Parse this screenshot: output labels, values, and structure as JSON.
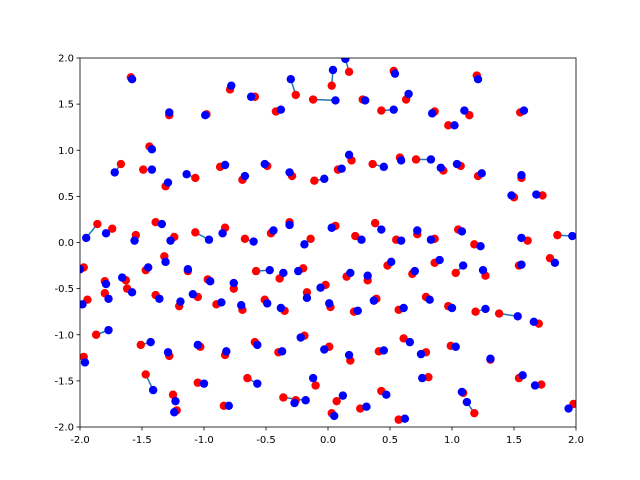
{
  "chart_data": {
    "type": "scatter",
    "title": "",
    "xlabel": "",
    "ylabel": "",
    "xlim": [
      -2.0,
      2.0
    ],
    "ylim": [
      -2.0,
      2.0
    ],
    "xticks": [
      "-2.0",
      "-1.5",
      "-1.0",
      "-0.5",
      "0.0",
      "0.5",
      "1.0",
      "1.5",
      "2.0"
    ],
    "yticks": [
      "-2.0",
      "-1.5",
      "-1.0",
      "-0.5",
      "0.0",
      "0.5",
      "1.0",
      "1.5",
      "2.0"
    ],
    "grid": false,
    "legend": "none",
    "colors": {
      "start": "#ff0000",
      "end": "#0000ff",
      "segment": "#1f77b4"
    },
    "series": [
      {
        "values": [
          [
            -1.59,
            1.79,
            -1.58,
            1.77
          ],
          [
            -1.44,
            1.04,
            -1.42,
            1.01
          ],
          [
            -1.28,
            1.38,
            -1.28,
            1.41
          ],
          [
            -0.98,
            1.39,
            -0.99,
            1.38
          ],
          [
            -0.79,
            1.66,
            -0.78,
            1.7
          ],
          [
            -0.59,
            1.58,
            -0.62,
            1.58
          ],
          [
            -0.42,
            1.42,
            -0.38,
            1.44
          ],
          [
            -0.26,
            1.6,
            -0.3,
            1.77
          ],
          [
            -0.12,
            1.55,
            0.06,
            1.54
          ],
          [
            0.03,
            1.7,
            0.04,
            1.87
          ],
          [
            0.17,
            1.85,
            0.14,
            1.99
          ],
          [
            0.28,
            1.55,
            0.3,
            1.54
          ],
          [
            0.43,
            1.43,
            0.53,
            1.44
          ],
          [
            0.53,
            1.86,
            0.54,
            1.83
          ],
          [
            0.63,
            1.55,
            0.65,
            1.61
          ],
          [
            0.86,
            1.42,
            0.84,
            1.4
          ],
          [
            0.97,
            1.27,
            1.02,
            1.27
          ],
          [
            1.14,
            1.38,
            1.1,
            1.43
          ],
          [
            1.2,
            1.81,
            1.21,
            1.77
          ],
          [
            1.55,
            1.41,
            1.58,
            1.43
          ],
          [
            -1.67,
            0.85,
            -1.72,
            0.76
          ],
          [
            -1.49,
            0.79,
            -1.42,
            0.79
          ],
          [
            -1.31,
            0.61,
            -1.29,
            0.65
          ],
          [
            -1.07,
            0.7,
            -1.14,
            0.74
          ],
          [
            -0.87,
            0.82,
            -0.83,
            0.84
          ],
          [
            -0.69,
            0.68,
            -0.67,
            0.72
          ],
          [
            -0.49,
            0.83,
            -0.51,
            0.85
          ],
          [
            -0.29,
            0.72,
            -0.31,
            0.76
          ],
          [
            -0.11,
            0.67,
            -0.03,
            0.69
          ],
          [
            0.08,
            0.79,
            0.11,
            0.8
          ],
          [
            0.19,
            0.89,
            0.17,
            0.95
          ],
          [
            0.36,
            0.85,
            0.45,
            0.82
          ],
          [
            0.58,
            0.92,
            0.59,
            0.89
          ],
          [
            0.71,
            0.9,
            0.83,
            0.9
          ],
          [
            0.93,
            0.78,
            0.91,
            0.81
          ],
          [
            1.07,
            0.83,
            1.04,
            0.85
          ],
          [
            1.21,
            0.72,
            1.24,
            0.75
          ],
          [
            1.5,
            0.49,
            1.48,
            0.51
          ],
          [
            1.56,
            0.7,
            1.56,
            0.73
          ],
          [
            1.73,
            0.51,
            1.68,
            0.52
          ],
          [
            -1.86,
            0.2,
            -1.95,
            0.05
          ],
          [
            -1.74,
            0.15,
            -1.79,
            0.1
          ],
          [
            -1.55,
            0.08,
            -1.56,
            0.02
          ],
          [
            -1.39,
            0.22,
            -1.34,
            0.2
          ],
          [
            -1.24,
            0.06,
            -1.27,
            0.02
          ],
          [
            -1.07,
            0.11,
            -0.96,
            0.03
          ],
          [
            -0.83,
            0.16,
            -0.85,
            0.1
          ],
          [
            -0.67,
            0.04,
            -0.6,
            0.01
          ],
          [
            -0.46,
            0.1,
            -0.44,
            0.13
          ],
          [
            -0.31,
            0.22,
            -0.31,
            0.19
          ],
          [
            -0.14,
            0.04,
            -0.19,
            -0.02
          ],
          [
            0.06,
            0.18,
            0.03,
            0.16
          ],
          [
            0.22,
            0.07,
            0.27,
            0.03
          ],
          [
            0.38,
            0.21,
            0.43,
            0.14
          ],
          [
            0.55,
            0.03,
            0.59,
            0.02
          ],
          [
            0.72,
            0.09,
            0.72,
            0.13
          ],
          [
            0.86,
            0.04,
            0.83,
            0.03
          ],
          [
            1.05,
            0.14,
            1.08,
            0.12
          ],
          [
            1.18,
            -0.02,
            1.23,
            -0.04
          ],
          [
            1.61,
            0.02,
            1.56,
            0.05
          ],
          [
            1.85,
            0.08,
            1.97,
            0.07
          ],
          [
            -1.97,
            -0.27,
            -2.0,
            -0.29
          ],
          [
            -1.8,
            -0.42,
            -1.79,
            -0.45
          ],
          [
            -1.63,
            -0.41,
            -1.66,
            -0.38
          ],
          [
            -1.47,
            -0.3,
            -1.45,
            -0.27
          ],
          [
            -1.32,
            -0.15,
            -1.31,
            -0.21
          ],
          [
            -1.13,
            -0.31,
            -1.13,
            -0.29
          ],
          [
            -0.97,
            -0.4,
            -0.95,
            -0.42
          ],
          [
            -0.76,
            -0.5,
            -0.76,
            -0.44
          ],
          [
            -0.58,
            -0.31,
            -0.47,
            -0.3
          ],
          [
            -0.39,
            -0.39,
            -0.36,
            -0.33
          ],
          [
            -0.2,
            -0.28,
            -0.24,
            -0.31
          ],
          [
            -0.02,
            -0.46,
            -0.06,
            -0.49
          ],
          [
            0.15,
            -0.37,
            0.18,
            -0.33
          ],
          [
            0.32,
            -0.41,
            0.32,
            -0.36
          ],
          [
            0.48,
            -0.25,
            0.51,
            -0.21
          ],
          [
            0.68,
            -0.34,
            0.7,
            -0.31
          ],
          [
            0.86,
            -0.22,
            0.9,
            -0.19
          ],
          [
            1.03,
            -0.33,
            1.09,
            -0.25
          ],
          [
            1.27,
            -0.36,
            1.25,
            -0.3
          ],
          [
            1.54,
            -0.25,
            1.56,
            -0.24
          ],
          [
            1.79,
            -0.17,
            1.83,
            -0.22
          ],
          [
            -1.94,
            -0.62,
            -1.98,
            -0.67
          ],
          [
            -1.8,
            -0.55,
            -1.77,
            -0.61
          ],
          [
            -1.62,
            -0.5,
            -1.58,
            -0.54
          ],
          [
            -1.39,
            -0.57,
            -1.36,
            -0.61
          ],
          [
            -1.2,
            -0.69,
            -1.19,
            -0.64
          ],
          [
            -1.05,
            -0.59,
            -1.09,
            -0.56
          ],
          [
            -0.9,
            -0.67,
            -0.86,
            -0.65
          ],
          [
            -0.69,
            -0.73,
            -0.7,
            -0.68
          ],
          [
            -0.51,
            -0.62,
            -0.49,
            -0.66
          ],
          [
            -0.35,
            -0.74,
            -0.38,
            -0.71
          ],
          [
            -0.17,
            -0.54,
            -0.17,
            -0.6
          ],
          [
            0.02,
            -0.7,
            0.01,
            -0.66
          ],
          [
            0.21,
            -0.75,
            0.24,
            -0.74
          ],
          [
            0.39,
            -0.61,
            0.37,
            -0.63
          ],
          [
            0.57,
            -0.73,
            0.61,
            -0.71
          ],
          [
            0.79,
            -0.59,
            0.82,
            -0.62
          ],
          [
            0.97,
            -0.69,
            1.0,
            -0.71
          ],
          [
            1.19,
            -0.75,
            1.27,
            -0.72
          ],
          [
            1.38,
            -0.77,
            1.53,
            -0.8
          ],
          [
            1.7,
            -0.88,
            1.66,
            -0.86
          ],
          [
            -1.87,
            -1.0,
            -1.77,
            -0.95
          ],
          [
            -1.51,
            -1.11,
            -1.43,
            -1.08
          ],
          [
            -1.28,
            -1.23,
            -1.29,
            -1.19
          ],
          [
            -1.03,
            -1.13,
            -1.05,
            -1.11
          ],
          [
            -0.83,
            -1.22,
            -0.82,
            -1.18
          ],
          [
            -0.59,
            -1.08,
            -0.57,
            -1.11
          ],
          [
            -0.4,
            -1.19,
            -0.37,
            -1.18
          ],
          [
            -0.19,
            -1.01,
            -0.22,
            -1.03
          ],
          [
            0.01,
            -1.13,
            -0.03,
            -1.16
          ],
          [
            0.18,
            -1.28,
            0.17,
            -1.22
          ],
          [
            0.41,
            -1.18,
            0.45,
            -1.17
          ],
          [
            0.61,
            -1.04,
            0.66,
            -1.08
          ],
          [
            0.79,
            -1.19,
            0.75,
            -1.21
          ],
          [
            0.99,
            -1.12,
            1.03,
            -1.13
          ],
          [
            1.31,
            -1.27,
            1.31,
            -1.26
          ],
          [
            1.54,
            -1.47,
            1.57,
            -1.44
          ],
          [
            -1.97,
            -1.24,
            -1.96,
            -1.3
          ],
          [
            -1.47,
            -1.43,
            -1.41,
            -1.6
          ],
          [
            -1.25,
            -1.65,
            -1.23,
            -1.72
          ],
          [
            -1.05,
            -1.52,
            -1.0,
            -1.53
          ],
          [
            -0.84,
            -1.77,
            -0.8,
            -1.77
          ],
          [
            -0.65,
            -1.47,
            -0.57,
            -1.53
          ],
          [
            -0.36,
            -1.68,
            -0.18,
            -1.71
          ],
          [
            -0.1,
            -1.55,
            -0.12,
            -1.47
          ],
          [
            0.07,
            -1.72,
            0.12,
            -1.66
          ],
          [
            0.26,
            -1.8,
            0.31,
            -1.78
          ],
          [
            0.43,
            -1.61,
            0.47,
            -1.65
          ],
          [
            0.57,
            -1.92,
            0.62,
            -1.91
          ],
          [
            0.81,
            -1.46,
            0.76,
            -1.47
          ],
          [
            1.09,
            -1.63,
            1.08,
            -1.62
          ],
          [
            1.18,
            -1.85,
            1.12,
            -1.73
          ],
          [
            1.72,
            -1.54,
            1.67,
            -1.55
          ],
          [
            1.98,
            -1.75,
            1.94,
            -1.8
          ],
          [
            -1.22,
            -1.82,
            -1.24,
            -1.84
          ],
          [
            -0.26,
            -1.71,
            -0.27,
            -1.74
          ],
          [
            0.03,
            -1.85,
            0.05,
            -1.88
          ]
        ]
      }
    ]
  }
}
